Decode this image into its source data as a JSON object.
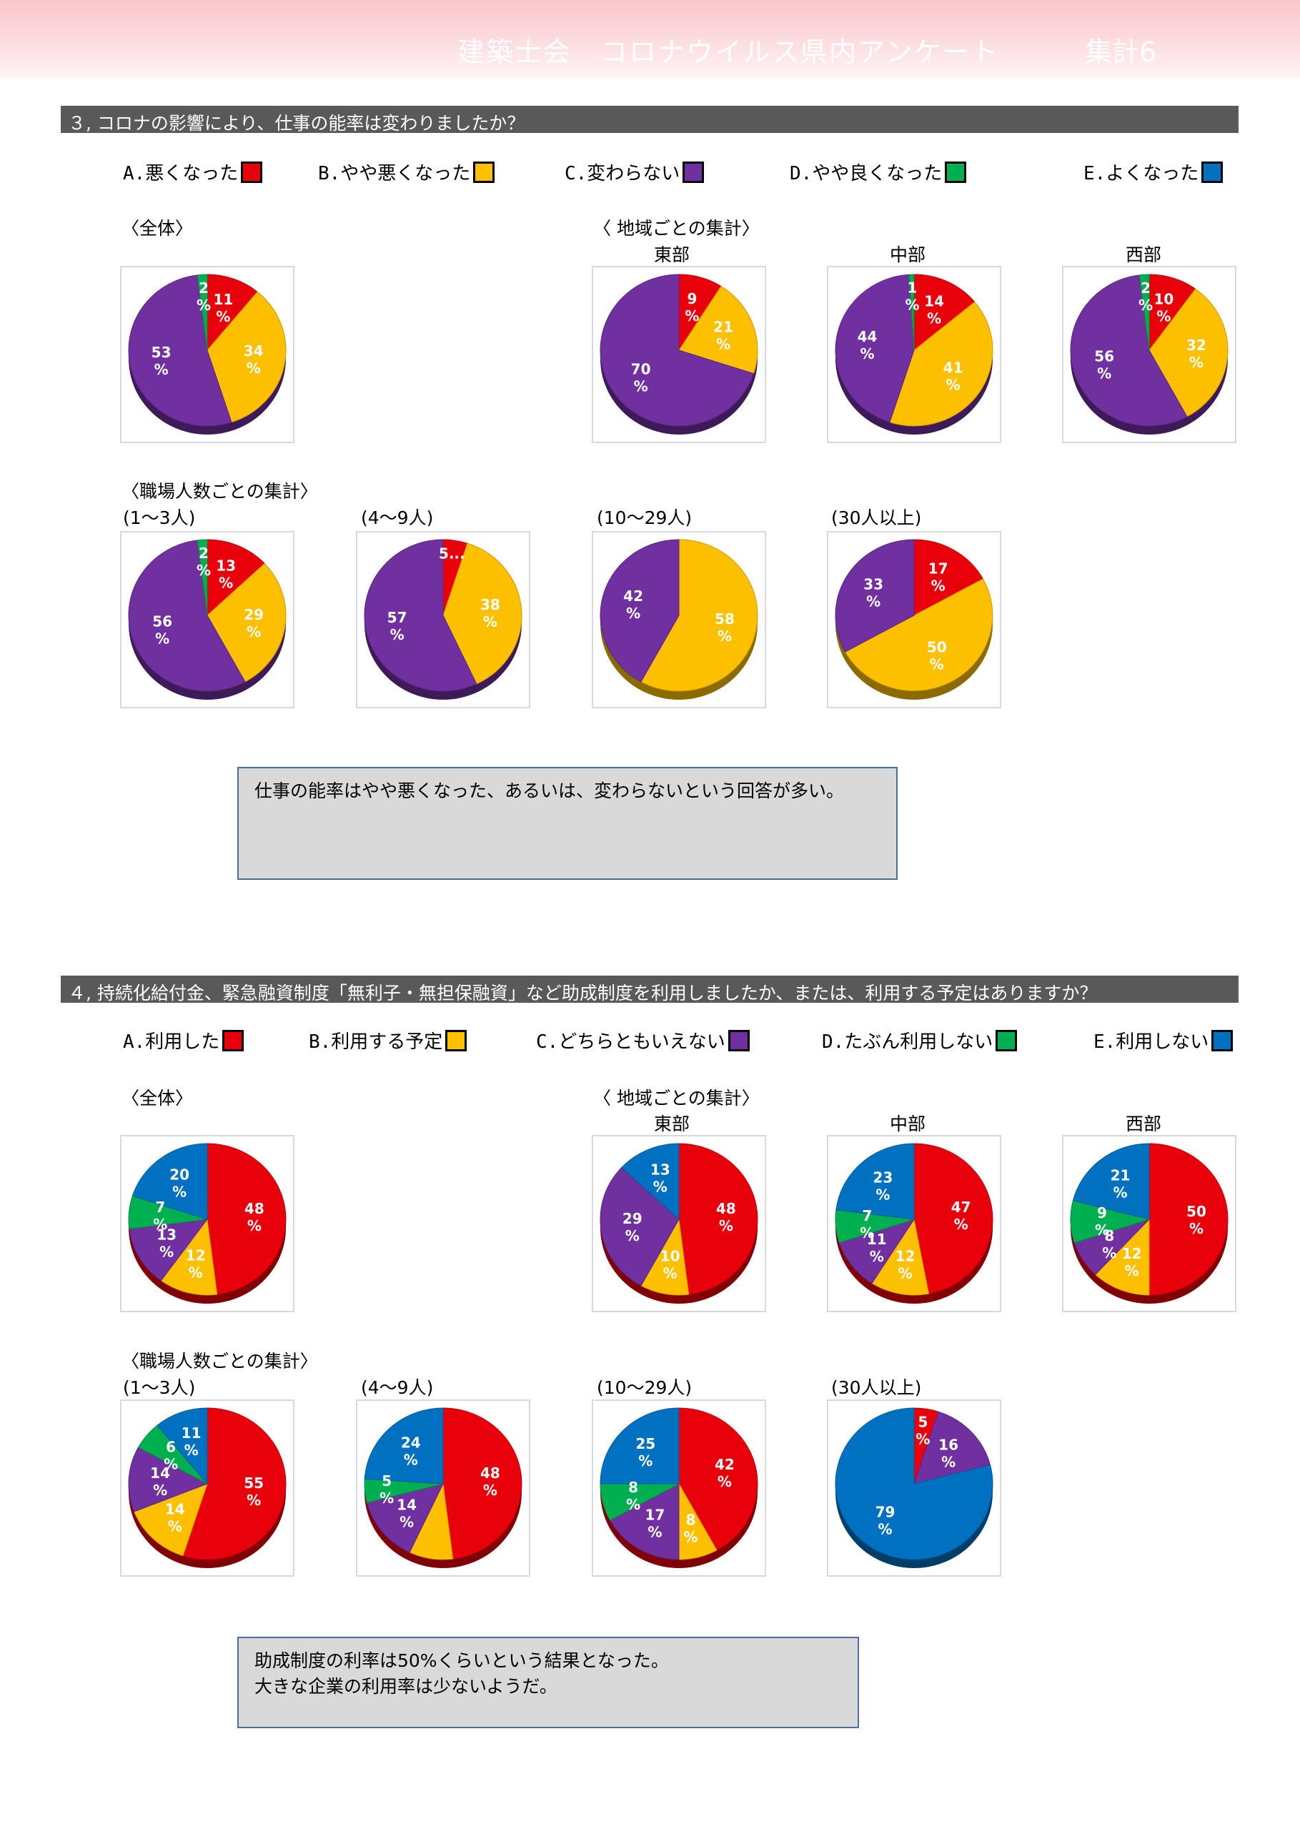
{
  "header": {
    "title": "建築士会　コロナウイルス県内アンケート",
    "page": "集計6"
  },
  "colors": {
    "A": "#e8000b",
    "B": "#fcc000",
    "C": "#7030a0",
    "D": "#00b050",
    "E": "#0070c0"
  },
  "q3": {
    "question": "３, コロナの影響により、仕事の能率は変わりましたか？",
    "legend": [
      {
        "key": "A",
        "label": "A.悪くなった"
      },
      {
        "key": "B",
        "label": "B.やや悪くなった"
      },
      {
        "key": "C",
        "label": "C.変わらない"
      },
      {
        "key": "D",
        "label": "D.やや良くなった"
      },
      {
        "key": "E",
        "label": "E.よくなった"
      }
    ],
    "overall_label": "〈全体〉",
    "region_label": "〈 地域ごとの集計〉",
    "size_label": "〈職場人数ごとの集計〉",
    "note": "仕事の能率はやや悪くなった、あるいは、変わらないという回答が多い。"
  },
  "q4": {
    "question": "４, 持続化給付金、緊急融資制度「無利子・無担保融資」など助成制度を利用しましたか、または、利用する予定はありますか？",
    "legend": [
      {
        "key": "A",
        "label": "A.利用した"
      },
      {
        "key": "B",
        "label": "B.利用する予定"
      },
      {
        "key": "C",
        "label": "C.どちらともいえない"
      },
      {
        "key": "D",
        "label": "D.たぶん利用しない"
      },
      {
        "key": "E",
        "label": "E.利用しない"
      }
    ],
    "overall_label": "〈全体〉",
    "region_label": "〈 地域ごとの集計〉",
    "size_label": "〈職場人数ごとの集計〉",
    "note_lines": [
      "助成制度の利率は50%くらいという結果となった。",
      "大きな企業の利用率は少ないようだ。"
    ]
  },
  "chart_data": [
    {
      "type": "pie",
      "question": "q3",
      "group": "全体",
      "title": "",
      "categories": [
        "A",
        "B",
        "C",
        "D"
      ],
      "values": [
        11,
        34,
        53,
        2
      ]
    },
    {
      "type": "pie",
      "question": "q3",
      "group": "地域",
      "title": "東部",
      "categories": [
        "A",
        "B",
        "C"
      ],
      "values": [
        9,
        21,
        70
      ]
    },
    {
      "type": "pie",
      "question": "q3",
      "group": "地域",
      "title": "中部",
      "categories": [
        "A",
        "B",
        "C",
        "D"
      ],
      "values": [
        14,
        41,
        44,
        1
      ]
    },
    {
      "type": "pie",
      "question": "q3",
      "group": "地域",
      "title": "西部",
      "categories": [
        "A",
        "B",
        "C",
        "D"
      ],
      "values": [
        10,
        32,
        56,
        2
      ]
    },
    {
      "type": "pie",
      "question": "q3",
      "group": "職場人数",
      "title": "(1～3人)",
      "categories": [
        "A",
        "B",
        "C",
        "D"
      ],
      "values": [
        13,
        29,
        56,
        2
      ]
    },
    {
      "type": "pie",
      "question": "q3",
      "group": "職場人数",
      "title": "(4～9人)",
      "categories": [
        "A",
        "B",
        "C"
      ],
      "values": [
        5,
        38,
        57
      ],
      "value_labels": [
        "5...",
        null,
        null
      ]
    },
    {
      "type": "pie",
      "question": "q3",
      "group": "職場人数",
      "title": "(10～29人)",
      "categories": [
        "B",
        "C"
      ],
      "values": [
        58,
        42
      ]
    },
    {
      "type": "pie",
      "question": "q3",
      "group": "職場人数",
      "title": "(30人以上)",
      "categories": [
        "A",
        "B",
        "C"
      ],
      "values": [
        17,
        50,
        33
      ]
    },
    {
      "type": "pie",
      "question": "q4",
      "group": "全体",
      "title": "",
      "categories": [
        "A",
        "B",
        "C",
        "D",
        "E"
      ],
      "values": [
        48,
        12,
        13,
        7,
        20
      ]
    },
    {
      "type": "pie",
      "question": "q4",
      "group": "地域",
      "title": "東部",
      "categories": [
        "A",
        "B",
        "C",
        "E"
      ],
      "values": [
        48,
        10,
        29,
        13
      ]
    },
    {
      "type": "pie",
      "question": "q4",
      "group": "地域",
      "title": "中部",
      "categories": [
        "A",
        "B",
        "C",
        "D",
        "E"
      ],
      "values": [
        47,
        12,
        11,
        7,
        23
      ]
    },
    {
      "type": "pie",
      "question": "q4",
      "group": "地域",
      "title": "西部",
      "categories": [
        "A",
        "B",
        "C",
        "D",
        "E"
      ],
      "values": [
        50,
        12,
        8,
        9,
        21
      ]
    },
    {
      "type": "pie",
      "question": "q4",
      "group": "職場人数",
      "title": "(1～3人)",
      "categories": [
        "A",
        "B",
        "C",
        "D",
        "E"
      ],
      "values": [
        55,
        14,
        14,
        6,
        11
      ]
    },
    {
      "type": "pie",
      "question": "q4",
      "group": "職場人数",
      "title": "(4～9人)",
      "categories": [
        "A",
        "B",
        "C",
        "D",
        "E"
      ],
      "values": [
        48,
        9,
        14,
        5,
        24
      ],
      "value_labels": [
        "48",
        "",
        "14",
        "5",
        "24"
      ]
    },
    {
      "type": "pie",
      "question": "q4",
      "group": "職場人数",
      "title": "(10～29人)",
      "categories": [
        "A",
        "B",
        "C",
        "D",
        "E"
      ],
      "values": [
        42,
        8,
        17,
        8,
        25
      ]
    },
    {
      "type": "pie",
      "question": "q4",
      "group": "職場人数",
      "title": "(30人以上)",
      "categories": [
        "A",
        "C",
        "E"
      ],
      "values": [
        5,
        16,
        79
      ]
    }
  ]
}
